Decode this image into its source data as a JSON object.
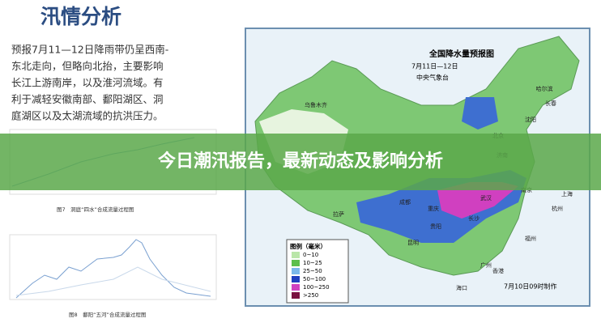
{
  "left_panel": {
    "title": "汛情分析",
    "paragraph": [
      "预报7月11—12日降雨带仍呈西南-",
      "东北走向，但略向北抬，主要影响",
      "长江上游南岸，以及淮河流域。有",
      "利于减轻安徽南部、鄱阳湖区、洞",
      "庭湖区以及太湖流域的抗洪压力。"
    ],
    "figure_captions": [
      "图7　洞庭“四水”合成流量过程图",
      "图8　鄱阳“五河”合成流量过程图"
    ]
  },
  "banner": {
    "text": "今日潮汛报告，最新动态及影响分析"
  },
  "map": {
    "title": "全国降水量预报图",
    "date": "7月11日—12日",
    "source": "中央气象台",
    "legend_title": "图例（毫米）",
    "legend_items": [
      "0~10",
      "10~25",
      "25~50",
      "50~100",
      "100~250",
      ">250"
    ],
    "made_time": "7月10日09时制作",
    "cities": [
      "乌鲁木齐",
      "哈尔滨",
      "长春",
      "沈阳",
      "北京",
      "济南",
      "拉萨",
      "成都",
      "重庆",
      "贵阳",
      "昆明",
      "长沙",
      "武汉",
      "南京",
      "上海",
      "杭州",
      "福州",
      "广州",
      "香港",
      "海口"
    ]
  }
}
